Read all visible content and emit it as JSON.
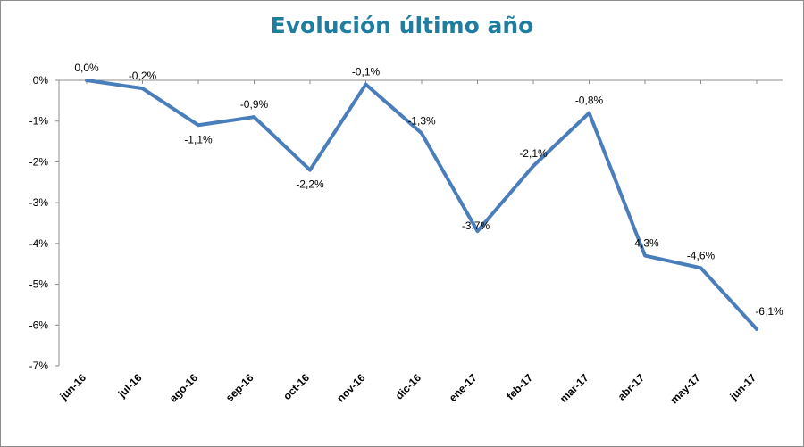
{
  "chart_data": {
    "type": "line",
    "title": "Evolución último año",
    "categories": [
      "jun-16",
      "jul-16",
      "ago-16",
      "sep-16",
      "oct-16",
      "nov-16",
      "dic-16",
      "ene-17",
      "feb-17",
      "mar-17",
      "abr-17",
      "may-17",
      "jun-17"
    ],
    "series": [
      {
        "values": [
          0.0,
          -0.2,
          -1.1,
          -0.9,
          -2.2,
          -0.1,
          -1.3,
          -3.7,
          -2.1,
          -0.8,
          -4.3,
          -4.6,
          -6.1
        ],
        "labels": [
          "0,0%",
          "-0,2%",
          "-1,1%",
          "-0,9%",
          "-2,2%",
          "-0,1%",
          "-1,3%",
          "-3,7%",
          "-2,1%",
          "-0,8%",
          "-4,3%",
          "-4,6%",
          "-6,1%"
        ],
        "color": "#4a7ebb"
      }
    ],
    "y_ticks": [
      0,
      -1,
      -2,
      -3,
      -4,
      -5,
      -6,
      -7
    ],
    "y_tick_labels": [
      "0%",
      "-1%",
      "-2%",
      "-3%",
      "-4%",
      "-5%",
      "-6%",
      "-7%"
    ],
    "ylim": [
      -7,
      0
    ],
    "xlabel": "",
    "ylabel": "",
    "grid": false,
    "legend": "none"
  }
}
